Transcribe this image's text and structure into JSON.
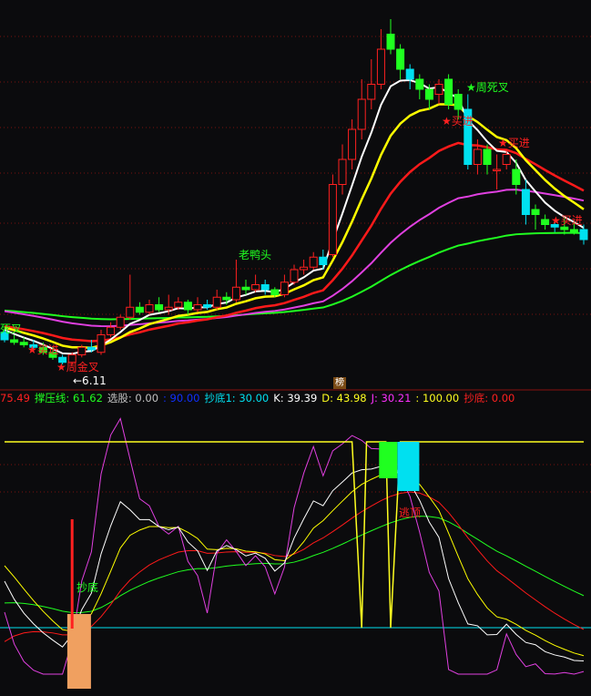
{
  "header": {
    "items": [
      {
        "text": "75.49",
        "color": "#ff2020"
      },
      {
        "text": "撑压线: 61.62",
        "color": "#20ff20"
      },
      {
        "text": "选股: 0.00",
        "color": "#c0c0c0"
      },
      {
        "text": ": 90.00",
        "color": "#1030ff"
      },
      {
        "text": "抄底1: 30.00",
        "color": "#00e0f0"
      },
      {
        "text": "K: 39.39",
        "color": "#ffffff"
      },
      {
        "text": "D: 43.98",
        "color": "#ffff20"
      },
      {
        "text": "J: 30.21",
        "color": "#ff30ff"
      },
      {
        "text": ": 100.00",
        "color": "#ffff20"
      },
      {
        "text": "抄底: 0.00",
        "color": "#ff2020"
      }
    ]
  },
  "badge": "榜",
  "colors": {
    "up": "#ff2020",
    "down": "#20ff20",
    "down_alt": "#00e0f0",
    "ma5": "#ffffff",
    "ma10": "#ffff00",
    "ma20": "#ff1a1a",
    "ma60": "#e040e0",
    "ma120": "#20ff20",
    "grid": "#7a1010"
  },
  "chart_data": [
    {
      "type": "candlestick",
      "title": "",
      "candles": [
        [
          6.75,
          6.6,
          6.8,
          6.55
        ],
        [
          6.6,
          6.55,
          6.7,
          6.5
        ],
        [
          6.55,
          6.5,
          6.65,
          6.45
        ],
        [
          6.5,
          6.45,
          6.6,
          6.4
        ],
        [
          6.45,
          6.35,
          6.55,
          6.3
        ],
        [
          6.35,
          6.25,
          6.45,
          6.2
        ],
        [
          6.25,
          6.15,
          6.3,
          6.11
        ],
        [
          6.15,
          6.3,
          6.35,
          6.11
        ],
        [
          6.3,
          6.45,
          6.5,
          6.25
        ],
        [
          6.45,
          6.4,
          6.6,
          6.35
        ],
        [
          6.35,
          6.7,
          6.8,
          6.3
        ],
        [
          6.7,
          6.85,
          6.95,
          6.65
        ],
        [
          6.85,
          7.05,
          7.1,
          6.8
        ],
        [
          7.05,
          7.25,
          7.9,
          7.0
        ],
        [
          7.25,
          7.15,
          7.35,
          7.1
        ],
        [
          7.15,
          7.3,
          7.4,
          7.1
        ],
        [
          7.3,
          7.2,
          7.45,
          7.15
        ],
        [
          7.2,
          7.25,
          7.5,
          7.1
        ],
        [
          7.25,
          7.35,
          7.45,
          7.2
        ],
        [
          7.35,
          7.2,
          7.4,
          7.1
        ],
        [
          7.2,
          7.3,
          7.45,
          7.15
        ],
        [
          7.3,
          7.25,
          7.4,
          7.2
        ],
        [
          7.25,
          7.45,
          7.6,
          7.2
        ],
        [
          7.45,
          7.4,
          7.55,
          7.3
        ],
        [
          7.4,
          7.65,
          8.2,
          7.35
        ],
        [
          7.65,
          7.6,
          7.8,
          7.5
        ],
        [
          7.6,
          7.7,
          7.9,
          7.55
        ],
        [
          7.7,
          7.6,
          7.8,
          7.5
        ],
        [
          7.6,
          7.5,
          7.65,
          7.45
        ],
        [
          7.5,
          7.75,
          7.9,
          7.45
        ],
        [
          7.75,
          8.0,
          8.1,
          7.7
        ],
        [
          8.0,
          8.05,
          8.2,
          7.9
        ],
        [
          8.05,
          8.25,
          8.35,
          8.0
        ],
        [
          8.25,
          8.1,
          8.4,
          8.0
        ],
        [
          8.3,
          9.7,
          9.9,
          8.25
        ],
        [
          9.7,
          10.2,
          10.5,
          9.5
        ],
        [
          10.2,
          10.8,
          11.0,
          10.0
        ],
        [
          10.8,
          11.4,
          11.8,
          10.6
        ],
        [
          11.4,
          11.7,
          12.2,
          11.2
        ],
        [
          11.7,
          12.4,
          12.8,
          11.6
        ],
        [
          12.7,
          12.4,
          13.0,
          12.3
        ],
        [
          12.4,
          12.0,
          12.5,
          11.8
        ],
        [
          12.0,
          11.8,
          12.1,
          11.6
        ],
        [
          11.8,
          11.6,
          11.9,
          11.4
        ],
        [
          11.6,
          11.4,
          11.7,
          11.2
        ],
        [
          11.5,
          11.7,
          11.8,
          11.3
        ],
        [
          11.8,
          11.3,
          11.9,
          11.2
        ],
        [
          11.5,
          11.2,
          11.6,
          11.0
        ],
        [
          11.2,
          10.1,
          11.5,
          10.0
        ],
        [
          10.1,
          10.4,
          10.6,
          9.9
        ],
        [
          10.4,
          10.1,
          10.5,
          9.9
        ],
        [
          10.0,
          10.0,
          10.3,
          9.6
        ],
        [
          10.1,
          10.3,
          10.4,
          10.0
        ],
        [
          10.0,
          9.7,
          10.2,
          9.5
        ],
        [
          9.6,
          9.1,
          9.8,
          8.9
        ],
        [
          9.2,
          9.1,
          9.3,
          8.8
        ],
        [
          9.0,
          8.9,
          9.1,
          8.8
        ],
        [
          8.9,
          8.85,
          9.0,
          8.75
        ],
        [
          8.85,
          8.8,
          9.05,
          8.7
        ],
        [
          8.8,
          8.75,
          8.95,
          8.7
        ],
        [
          8.8,
          8.6,
          8.9,
          8.5
        ]
      ],
      "candle_fields": [
        "open",
        "close",
        "high",
        "low"
      ],
      "moving_averages": [
        5,
        10,
        20,
        40,
        80
      ],
      "annotations": [
        {
          "text": "死叉",
          "candle": 0,
          "color": "#20ff20"
        },
        {
          "text": "★买进",
          "candle": 3,
          "color": "#ff2020"
        },
        {
          "text": "★周金叉",
          "candle": 6,
          "color": "#ff2020"
        },
        {
          "text": "←6.11",
          "candle": 7,
          "color": "#ffffff"
        },
        {
          "text": "老鸭头",
          "candle": 24,
          "color": "#20ff20"
        },
        {
          "text": "★周死叉",
          "candle": 48,
          "color": "#20ff20"
        },
        {
          "text": "★买进",
          "candle": 46,
          "color": "#ff2020"
        },
        {
          "text": "★买进",
          "candle": 52,
          "color": "#ff2020"
        },
        {
          "text": "★买进",
          "candle": 58,
          "color": "#ff2020"
        }
      ]
    },
    {
      "type": "line",
      "title": "",
      "series": [
        "K",
        "D",
        "J"
      ],
      "ylim": [
        0,
        100
      ],
      "levels": [
        20,
        100
      ],
      "select_line": [
        [
          0,
          100
        ],
        [
          36,
          100
        ],
        [
          37,
          20
        ],
        [
          37.5,
          100
        ],
        [
          39.5,
          100
        ],
        [
          40,
          20
        ],
        [
          41,
          100
        ],
        [
          60,
          100
        ]
      ],
      "signals": [
        {
          "text": "抄底",
          "candle": 7,
          "kind": "bottom",
          "color": "#ffa050"
        },
        {
          "text": "逃顶",
          "candle": 40,
          "kind": "top",
          "color": "#ff2020"
        }
      ]
    }
  ]
}
